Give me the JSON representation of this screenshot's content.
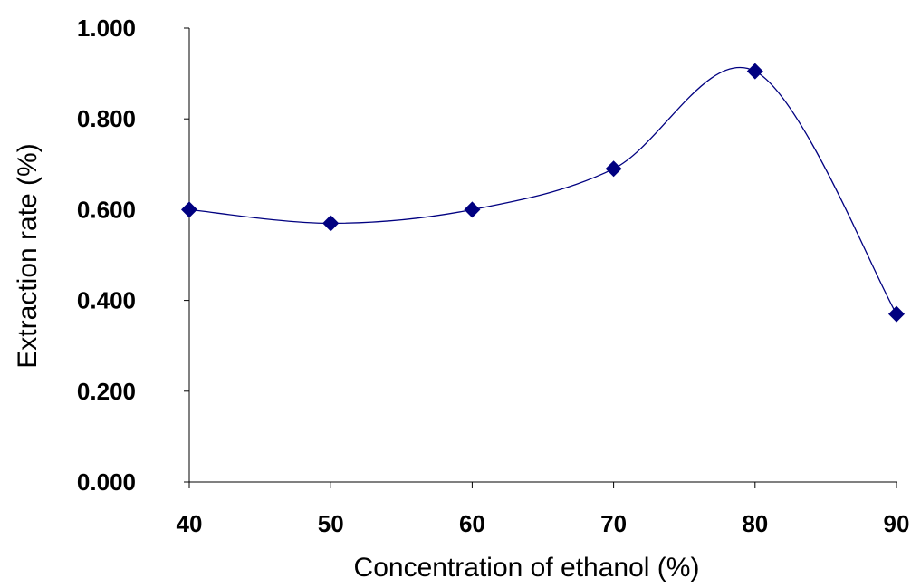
{
  "chart_data": {
    "type": "line",
    "title": "",
    "xlabel": "Concentration of ethanol (%)",
    "ylabel": "Extraction rate (%)",
    "x": [
      40,
      50,
      60,
      70,
      80,
      90
    ],
    "series": [
      {
        "values": [
          0.6,
          0.57,
          0.6,
          0.69,
          0.905,
          0.37
        ]
      }
    ],
    "x_ticks": [
      "40",
      "50",
      "60",
      "70",
      "80",
      "90"
    ],
    "y_ticks": [
      "0.000",
      "0.200",
      "0.400",
      "0.600",
      "0.800",
      "1.000"
    ],
    "xlim": [
      40,
      90
    ],
    "ylim": [
      0,
      1
    ],
    "grid": false,
    "smoothed": true,
    "marker": "diamond",
    "colors": {
      "series": "#000080",
      "axis": "#000000",
      "text": "#000000"
    }
  }
}
